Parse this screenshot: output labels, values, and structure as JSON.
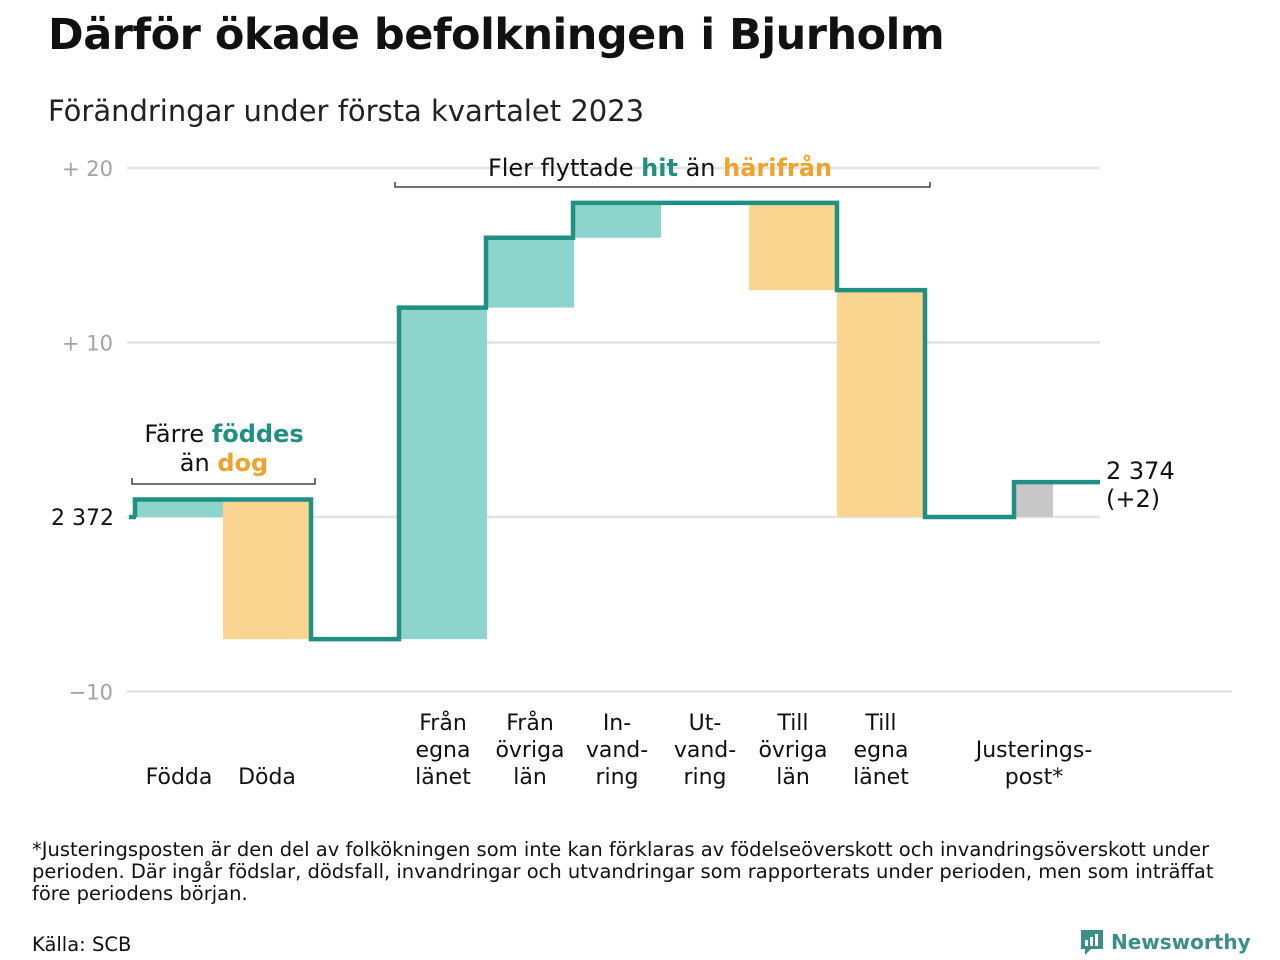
{
  "title": "Därför ökade befolkningen i Bjurholm",
  "subtitle": "Förändringar under första kvartalet 2023",
  "chart_data": {
    "type": "waterfall",
    "baseline_value": 2372,
    "baseline_label": "2 372",
    "y_ticks": [
      {
        "value": 20,
        "label": "+ 20"
      },
      {
        "value": 10,
        "label": "+ 10"
      },
      {
        "value": -10,
        "label": "−10"
      }
    ],
    "ylim": [
      -10,
      20
    ],
    "categories": [
      {
        "id": "fodda",
        "label": [
          "Födda"
        ],
        "change": 1,
        "kind": "gain"
      },
      {
        "id": "doda",
        "label": [
          "Döda"
        ],
        "change": -8,
        "kind": "loss"
      },
      {
        "id": "fran-egna-lanet",
        "label": [
          "Från",
          "egna",
          "länet"
        ],
        "change": 19,
        "kind": "gain"
      },
      {
        "id": "fran-ovriga-lan",
        "label": [
          "Från",
          "övriga",
          "län"
        ],
        "change": 4,
        "kind": "gain"
      },
      {
        "id": "invandring",
        "label": [
          "In-",
          "vand-",
          "ring"
        ],
        "change": 2,
        "kind": "gain"
      },
      {
        "id": "utvandring",
        "label": [
          "Ut-",
          "vand-",
          "ring"
        ],
        "change": 0,
        "kind": "loss"
      },
      {
        "id": "till-ovriga-lan",
        "label": [
          "Till",
          "övriga",
          "län"
        ],
        "change": -5,
        "kind": "loss"
      },
      {
        "id": "till-egna-lanet",
        "label": [
          "Till",
          "egna",
          "länet"
        ],
        "change": -13,
        "kind": "loss"
      },
      {
        "id": "justeringspost",
        "label": [
          "Justerings-",
          "post*"
        ],
        "change": 2,
        "kind": "adjustment"
      }
    ],
    "end_label": {
      "value": "2 374",
      "change": "(+2)"
    },
    "annotations": {
      "births": {
        "line1_pre": "Färre ",
        "line1_hi": "föddes",
        "line2_pre": "än ",
        "line2_hi": "dog"
      },
      "migration": {
        "pre": "Fler flyttade ",
        "hi1": "hit",
        "mid": " än ",
        "hi2": "härifrån"
      }
    },
    "colors": {
      "gain": "#8dd5cc",
      "loss": "#f9d58f",
      "adjustment": "#c8c8c8",
      "step_line": "#1f9082",
      "teal_text": "#1f9082",
      "orange_text": "#f0a22a",
      "grid": "#e3e3e3",
      "tick_text": "#a3a3a3"
    }
  },
  "footnote": "*Justeringsposten är den del av folkökningen som inte kan förklaras av födelseöverskott och invandringsöverskott under perioden. Där ingår födslar, dödsfall, invandringar och utvandringar som rapporterats under perioden, men som inträffat före periodens början.",
  "source": "Källa: SCB",
  "brand": {
    "name": "Newsworthy",
    "icon": "chart-logo-icon"
  }
}
